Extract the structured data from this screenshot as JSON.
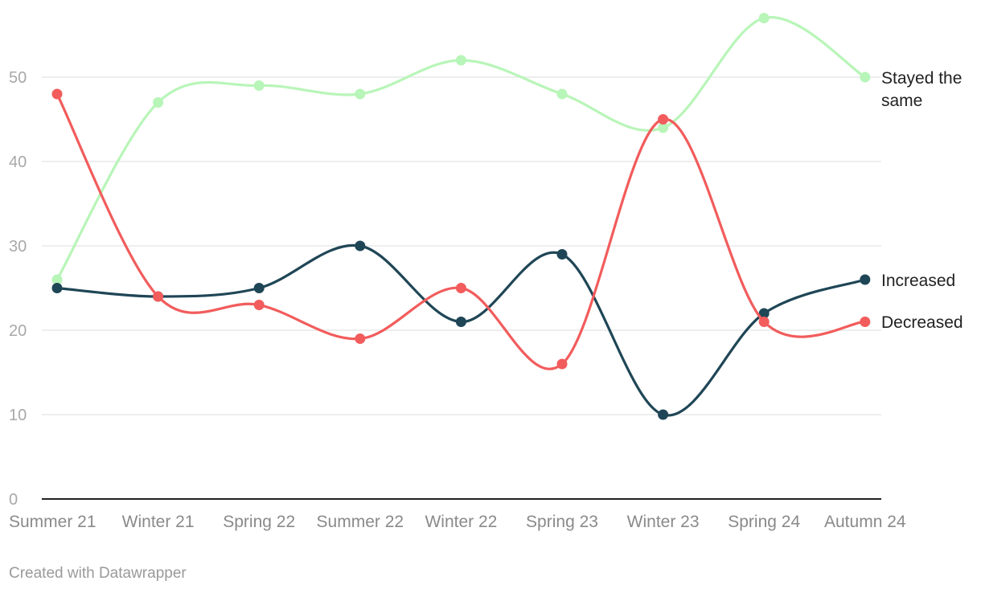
{
  "chart_data": {
    "type": "line",
    "categories": [
      "Summer 21",
      "Winter 21",
      "Spring 22",
      "Summer 22",
      "Winter 22",
      "Spring 23",
      "Winter 23",
      "Spring 24",
      "Autumn 24"
    ],
    "series": [
      {
        "name": "Stayed the same",
        "label_lines": [
          "Stayed the",
          "same"
        ],
        "color": "#b8f5b8",
        "values": [
          26,
          47,
          49,
          48,
          52,
          48,
          44,
          57,
          50
        ]
      },
      {
        "name": "Increased",
        "label_lines": [
          "Increased"
        ],
        "color": "#1f4656",
        "values": [
          25,
          24,
          25,
          30,
          21,
          29,
          10,
          22,
          26
        ]
      },
      {
        "name": "Decreased",
        "label_lines": [
          "Decreased"
        ],
        "color": "#f25c5c",
        "values": [
          48,
          24,
          23,
          19,
          25,
          16,
          45,
          21,
          21
        ]
      }
    ],
    "yticks": [
      0,
      10,
      20,
      30,
      40,
      50
    ],
    "ylim": [
      0,
      50
    ],
    "grid": true,
    "legend": "direct labels at line ends"
  },
  "footer": {
    "credit": "Created with Datawrapper"
  }
}
